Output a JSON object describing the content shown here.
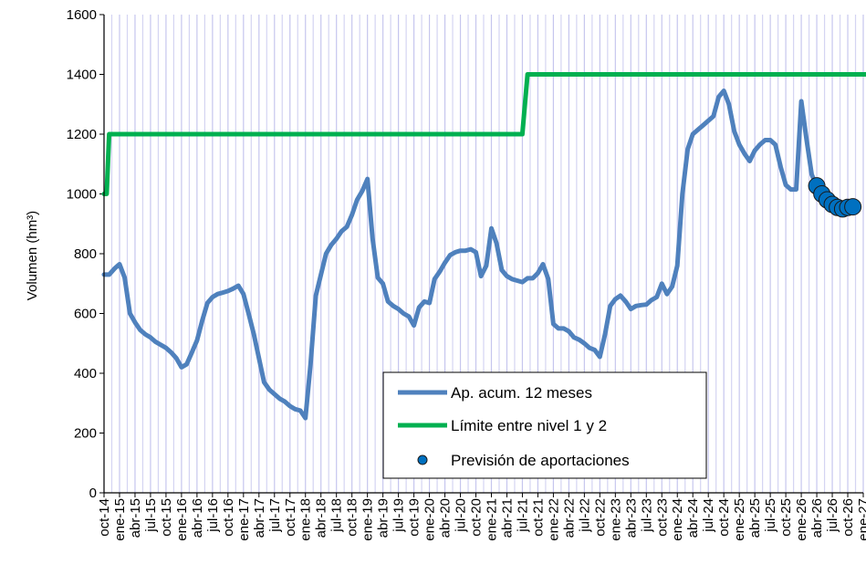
{
  "chart_data": {
    "type": "line",
    "title": "",
    "xlabel": "",
    "ylabel": "Volumen (hm³)",
    "ylim": [
      0,
      1600
    ],
    "yticks": [
      0,
      200,
      400,
      600,
      800,
      1000,
      1200,
      1400,
      1600
    ],
    "grid": {
      "vertical": true,
      "horizontal": false
    },
    "legend_position": "bottom-center",
    "categories": [
      "oct-14",
      "ene-15",
      "abr-15",
      "jul-15",
      "oct-15",
      "ene-16",
      "abr-16",
      "jul-16",
      "oct-16",
      "ene-17",
      "abr-17",
      "jul-17",
      "oct-17",
      "ene-18",
      "abr-18",
      "jul-18",
      "oct-18",
      "ene-19",
      "abr-19",
      "jul-19",
      "oct-19",
      "ene-20",
      "abr-20",
      "jul-20",
      "oct-20",
      "ene-21",
      "abr-21",
      "jul-21",
      "oct-21",
      "ene-22",
      "abr-22",
      "jul-22",
      "oct-22",
      "ene-23",
      "abr-23",
      "jul-23",
      "oct-23",
      "ene-24",
      "abr-24",
      "jul-24",
      "oct-24",
      "ene-25",
      "abr-25",
      "jul-25",
      "oct-25",
      "ene-26",
      "abr-26",
      "jul-26",
      "oct-26",
      "ene-27"
    ],
    "series": [
      {
        "name": "Ap. acum. 12 meses",
        "type": "line",
        "color": "#4F81BD",
        "points": [
          [
            0,
            730
          ],
          [
            0.33,
            730
          ],
          [
            0.67,
            750
          ],
          [
            1,
            765
          ],
          [
            1.33,
            720
          ],
          [
            1.67,
            600
          ],
          [
            2,
            570
          ],
          [
            2.33,
            545
          ],
          [
            2.67,
            530
          ],
          [
            3,
            520
          ],
          [
            3.33,
            505
          ],
          [
            3.67,
            495
          ],
          [
            4,
            485
          ],
          [
            4.33,
            470
          ],
          [
            4.67,
            450
          ],
          [
            5,
            420
          ],
          [
            5.33,
            430
          ],
          [
            5.67,
            470
          ],
          [
            6,
            510
          ],
          [
            6.33,
            575
          ],
          [
            6.67,
            635
          ],
          [
            7,
            655
          ],
          [
            7.33,
            665
          ],
          [
            7.67,
            670
          ],
          [
            8,
            675
          ],
          [
            8.33,
            683
          ],
          [
            8.67,
            693
          ],
          [
            9,
            665
          ],
          [
            9.33,
            600
          ],
          [
            9.67,
            530
          ],
          [
            10,
            450
          ],
          [
            10.33,
            370
          ],
          [
            10.67,
            345
          ],
          [
            11,
            330
          ],
          [
            11.33,
            315
          ],
          [
            11.67,
            305
          ],
          [
            12,
            290
          ],
          [
            12.33,
            280
          ],
          [
            12.67,
            275
          ],
          [
            13,
            250
          ],
          [
            13.33,
            430
          ],
          [
            13.67,
            660
          ],
          [
            14,
            730
          ],
          [
            14.33,
            800
          ],
          [
            14.67,
            830
          ],
          [
            15,
            850
          ],
          [
            15.33,
            875
          ],
          [
            15.67,
            890
          ],
          [
            16,
            930
          ],
          [
            16.33,
            980
          ],
          [
            16.67,
            1010
          ],
          [
            17,
            1050
          ],
          [
            17.33,
            850
          ],
          [
            17.67,
            720
          ],
          [
            18,
            700
          ],
          [
            18.33,
            640
          ],
          [
            18.67,
            625
          ],
          [
            19,
            615
          ],
          [
            19.33,
            600
          ],
          [
            19.67,
            590
          ],
          [
            20,
            560
          ],
          [
            20.33,
            620
          ],
          [
            20.67,
            640
          ],
          [
            21,
            635
          ],
          [
            21.33,
            715
          ],
          [
            21.67,
            740
          ],
          [
            22,
            770
          ],
          [
            22.33,
            795
          ],
          [
            22.67,
            805
          ],
          [
            23,
            810
          ],
          [
            23.33,
            810
          ],
          [
            23.67,
            815
          ],
          [
            24,
            805
          ],
          [
            24.33,
            725
          ],
          [
            24.67,
            760
          ],
          [
            25,
            885
          ],
          [
            25.33,
            835
          ],
          [
            25.67,
            745
          ],
          [
            26,
            725
          ],
          [
            26.33,
            715
          ],
          [
            26.67,
            710
          ],
          [
            27,
            705
          ],
          [
            27.33,
            718
          ],
          [
            27.67,
            718
          ],
          [
            28,
            735
          ],
          [
            28.33,
            765
          ],
          [
            28.67,
            715
          ],
          [
            29,
            565
          ],
          [
            29.33,
            550
          ],
          [
            29.67,
            550
          ],
          [
            30,
            540
          ],
          [
            30.33,
            520
          ],
          [
            30.67,
            512
          ],
          [
            31,
            500
          ],
          [
            31.33,
            485
          ],
          [
            31.67,
            478
          ],
          [
            32,
            455
          ],
          [
            32.33,
            530
          ],
          [
            32.67,
            625
          ],
          [
            33,
            648
          ],
          [
            33.33,
            660
          ],
          [
            33.67,
            640
          ],
          [
            34,
            615
          ],
          [
            34.33,
            625
          ],
          [
            34.67,
            628
          ],
          [
            35,
            630
          ],
          [
            35.33,
            645
          ],
          [
            35.67,
            655
          ],
          [
            36,
            700
          ],
          [
            36.33,
            665
          ],
          [
            36.67,
            690
          ],
          [
            37,
            760
          ],
          [
            37.33,
            1000
          ],
          [
            37.67,
            1150
          ],
          [
            38,
            1200
          ],
          [
            38.33,
            1215
          ],
          [
            38.67,
            1230
          ],
          [
            39,
            1245
          ],
          [
            39.33,
            1260
          ],
          [
            39.67,
            1325
          ],
          [
            40,
            1345
          ],
          [
            40.33,
            1300
          ],
          [
            40.67,
            1210
          ],
          [
            41,
            1165
          ],
          [
            41.33,
            1135
          ],
          [
            41.67,
            1110
          ],
          [
            42,
            1145
          ],
          [
            42.33,
            1165
          ],
          [
            42.67,
            1180
          ],
          [
            43,
            1180
          ],
          [
            43.33,
            1165
          ],
          [
            43.67,
            1090
          ],
          [
            44,
            1030
          ],
          [
            44.33,
            1015
          ],
          [
            44.67,
            1015
          ],
          [
            45,
            1310
          ],
          [
            45.33,
            1185
          ],
          [
            45.67,
            1065
          ],
          [
            46,
            1025
          ]
        ]
      },
      {
        "name": "Límite entre nivel 1 y 2",
        "type": "line",
        "color": "#00B050",
        "points": [
          [
            0,
            1000
          ],
          [
            0.17,
            1000
          ],
          [
            0.33,
            1200
          ],
          [
            27,
            1200
          ],
          [
            27.33,
            1400
          ],
          [
            50,
            1400
          ]
        ]
      },
      {
        "name": "Previsión de aportaciones",
        "type": "scatter",
        "color": "#0070C0",
        "points": [
          [
            46,
            1027
          ],
          [
            46.33,
            1000
          ],
          [
            46.67,
            980
          ],
          [
            47,
            965
          ],
          [
            47.33,
            955
          ],
          [
            47.67,
            950
          ],
          [
            48,
            955
          ],
          [
            48.33,
            957
          ]
        ]
      }
    ]
  }
}
